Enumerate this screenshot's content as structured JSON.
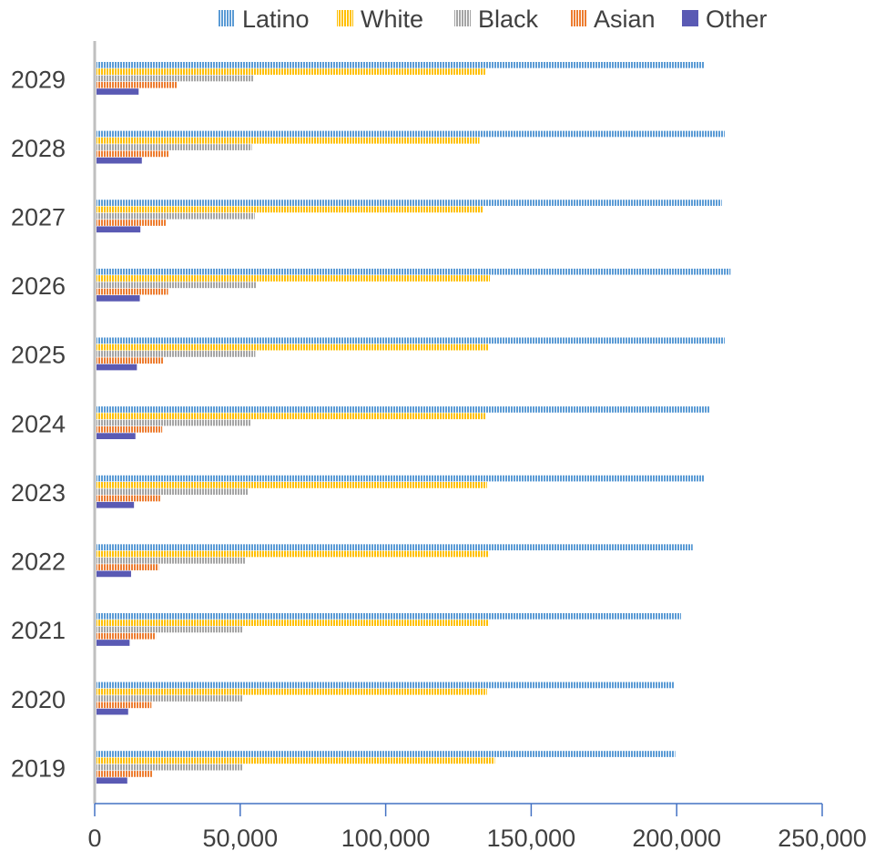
{
  "chart_data": {
    "type": "bar",
    "orientation": "horizontal",
    "title": "",
    "xlabel": "",
    "ylabel": "",
    "categories": [
      "2019",
      "2020",
      "2021",
      "2022",
      "2023",
      "2024",
      "2025",
      "2026",
      "2027",
      "2028",
      "2029"
    ],
    "xlim": [
      0,
      250000
    ],
    "x_ticks": [
      0,
      50000,
      100000,
      150000,
      200000,
      250000
    ],
    "x_tick_labels": [
      "0",
      "50,000",
      "100,000",
      "150,000",
      "200,000",
      "250,000"
    ],
    "grid": false,
    "legend_position": "top",
    "series": [
      {
        "name": "Latino",
        "color": "#5B9BD5",
        "pattern": "vertical-stripes",
        "values": [
          199500,
          199000,
          201500,
          205500,
          209500,
          211500,
          216500,
          218500,
          215500,
          216500,
          209500
        ]
      },
      {
        "name": "White",
        "color": "#FFC000",
        "pattern": "vertical-stripes",
        "values": [
          137500,
          134800,
          135500,
          135500,
          134800,
          134500,
          135500,
          135800,
          133500,
          132200,
          134200
        ]
      },
      {
        "name": "Black",
        "color": "#A5A5A5",
        "pattern": "vertical-stripes",
        "values": [
          51000,
          51000,
          50800,
          51800,
          52800,
          53800,
          55200,
          55500,
          55000,
          54000,
          54500
        ]
      },
      {
        "name": "Asian",
        "color": "#ED7D31",
        "pattern": "vertical-stripes",
        "values": [
          19800,
          19500,
          21000,
          22000,
          22500,
          23200,
          23500,
          25200,
          24500,
          25500,
          28200
        ]
      },
      {
        "name": "Other",
        "color": "#5A5AB4",
        "pattern": "solid",
        "values": [
          11200,
          11500,
          12000,
          12500,
          13500,
          14000,
          14500,
          15500,
          15700,
          16200,
          15100
        ]
      }
    ]
  }
}
